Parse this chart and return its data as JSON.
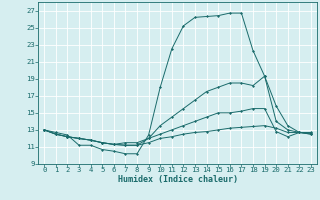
{
  "xlabel": "Humidex (Indice chaleur)",
  "background_color": "#d6eef0",
  "line_color": "#1a6b6b",
  "xlim": [
    -0.5,
    23.5
  ],
  "ylim": [
    9,
    28
  ],
  "xticks": [
    0,
    1,
    2,
    3,
    4,
    5,
    6,
    7,
    8,
    9,
    10,
    11,
    12,
    13,
    14,
    15,
    16,
    17,
    18,
    19,
    20,
    21,
    22,
    23
  ],
  "yticks": [
    9,
    11,
    13,
    15,
    17,
    19,
    21,
    23,
    25,
    27
  ],
  "line1_y": [
    13,
    12.7,
    12.4,
    11.2,
    11.2,
    10.7,
    10.5,
    10.2,
    10.2,
    12.4,
    18,
    22.5,
    25.2,
    26.2,
    26.3,
    26.4,
    26.7,
    26.7,
    22.3,
    19.3,
    14.0,
    13.0,
    12.7,
    12.7
  ],
  "line2_y": [
    13,
    12.5,
    12.2,
    12.0,
    11.8,
    11.5,
    11.3,
    11.2,
    11.2,
    12.0,
    13.5,
    14.5,
    15.5,
    16.5,
    17.5,
    18.0,
    18.5,
    18.5,
    18.2,
    19.3,
    15.8,
    13.5,
    12.7,
    12.6
  ],
  "line3_y": [
    13,
    12.5,
    12.2,
    12.0,
    11.8,
    11.5,
    11.3,
    11.5,
    11.5,
    12.0,
    12.5,
    13.0,
    13.5,
    14.0,
    14.5,
    15.0,
    15.0,
    15.2,
    15.5,
    15.5,
    12.8,
    12.2,
    12.7,
    12.5
  ],
  "line4_y": [
    13,
    12.5,
    12.2,
    12.0,
    11.8,
    11.5,
    11.3,
    11.2,
    11.2,
    11.5,
    12.0,
    12.2,
    12.5,
    12.7,
    12.8,
    13.0,
    13.2,
    13.3,
    13.4,
    13.5,
    13.2,
    12.7,
    12.7,
    12.5
  ],
  "tick_fontsize": 5.2,
  "xlabel_fontsize": 6.0
}
